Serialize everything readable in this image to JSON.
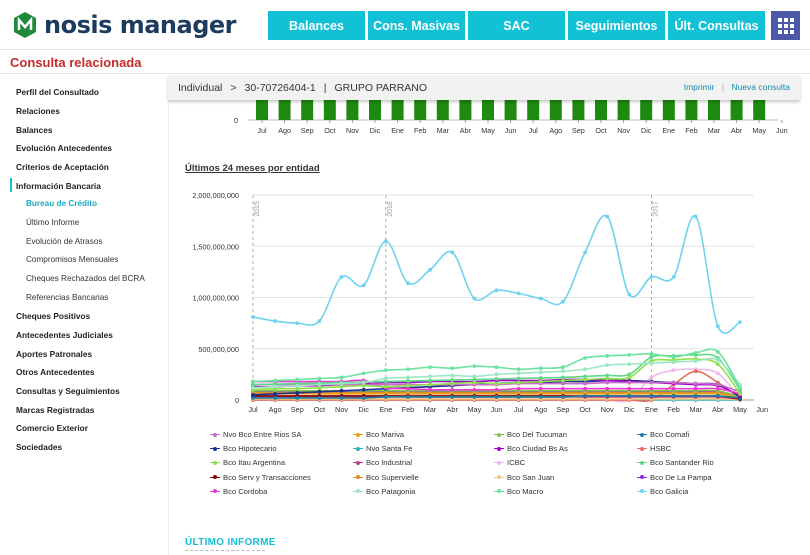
{
  "header": {
    "logo_text": "nosis manager",
    "brand_color": "#1d3a5f",
    "accent_color": "#13c1d6",
    "nav": [
      {
        "label": "Balances"
      },
      {
        "label": "Cons. Masivas"
      },
      {
        "label": "SAC"
      },
      {
        "label": "Seguimientos"
      },
      {
        "label": "Últ. Consultas"
      }
    ],
    "apps_icon": "grid-icon"
  },
  "page_title": "Consulta relacionada",
  "sidebar": {
    "items": [
      {
        "label": "Perfil del Consultado"
      },
      {
        "label": "Relaciones"
      },
      {
        "label": "Balances"
      },
      {
        "label": "Evolución Antecedentes"
      },
      {
        "label": "Criterios de Aceptación"
      },
      {
        "label": "Información Bancaria"
      },
      {
        "label": "Bureau de Crédito"
      },
      {
        "label": "Último Informe"
      },
      {
        "label": "Evolución de Atrasos"
      },
      {
        "label": "Compromisos Mensuales"
      },
      {
        "label": "Cheques Rechazados del BCRA"
      },
      {
        "label": "Referencias Bancarias"
      },
      {
        "label": "Cheques Positivos"
      },
      {
        "label": "Antecedentes Judiciales"
      },
      {
        "label": "Aportes Patronales"
      },
      {
        "label": "Otros Antecedentes"
      },
      {
        "label": "Consultas y Seguimientos"
      },
      {
        "label": "Marcas Registradas"
      },
      {
        "label": "Comercio Exterior"
      },
      {
        "label": "Sociedades"
      }
    ]
  },
  "breadcrumb": {
    "type": "Individual",
    "sep": ">",
    "cuit": "30-70726404-1",
    "bar": "|",
    "name": "GRUPO PARRANO",
    "print_label": "Imprimir",
    "link_sep": "|",
    "new_query_label": "Nueva consulta"
  },
  "top_chart": {
    "zero_label": "0",
    "months": [
      "Jul",
      "Ago",
      "Sep",
      "Oct",
      "Nov",
      "Dic",
      "Ene",
      "Feb",
      "Mar",
      "Abr",
      "May",
      "Jun",
      "Jul",
      "Ago",
      "Sep",
      "Oct",
      "Nov",
      "Dic",
      "Ene",
      "Feb",
      "Mar",
      "Abr",
      "May",
      "Jun"
    ],
    "bar_color": "#1e8a0f"
  },
  "chart_title": "Últimos 24 meses por entidad",
  "chart_data": {
    "type": "line",
    "title": "Últimos 24 meses por entidad",
    "x": [
      "Jul",
      "Ago",
      "Sep",
      "Oct",
      "Nov",
      "Dic",
      "Ene",
      "Feb",
      "Mar",
      "Abr",
      "May",
      "Jun",
      "Jul",
      "Ago",
      "Sep",
      "Oct",
      "Nov",
      "Dic",
      "Ene",
      "Feb",
      "Mar",
      "Abr",
      "May"
    ],
    "year_markers": [
      {
        "label": "2015",
        "index": 0
      },
      {
        "label": "2016",
        "index": 6
      },
      {
        "label": "2017",
        "index": 18
      }
    ],
    "ylim": [
      0,
      2000000000
    ],
    "yticks": [
      "0",
      "500,000,000",
      "1,000,000,000",
      "1,500,000,000",
      "2,000,000,000"
    ],
    "x_extra_tick": "Jun",
    "grid": true,
    "series": [
      {
        "name": "Bco Galicia",
        "color": "#6fd3ee",
        "values": [
          810000000,
          770000000,
          750000000,
          770000000,
          1200000000,
          1120000000,
          1550000000,
          1140000000,
          1270000000,
          1440000000,
          990000000,
          1070000000,
          1040000000,
          990000000,
          960000000,
          1440000000,
          1790000000,
          1030000000,
          1200000000,
          1200000000,
          1790000000,
          720000000,
          760000000
        ]
      },
      {
        "name": "Bco Macro",
        "color": "#6ce39e",
        "values": [
          180000000,
          190000000,
          200000000,
          210000000,
          220000000,
          260000000,
          290000000,
          300000000,
          320000000,
          310000000,
          330000000,
          320000000,
          300000000,
          310000000,
          320000000,
          410000000,
          430000000,
          440000000,
          450000000,
          420000000,
          460000000,
          470000000,
          120000000
        ]
      },
      {
        "name": "Bco Patagonia",
        "color": "#9be7c4",
        "values": [
          120000000,
          130000000,
          140000000,
          150000000,
          160000000,
          170000000,
          210000000,
          220000000,
          230000000,
          240000000,
          230000000,
          250000000,
          260000000,
          270000000,
          280000000,
          300000000,
          340000000,
          350000000,
          360000000,
          370000000,
          380000000,
          390000000,
          150000000
        ]
      },
      {
        "name": "Bco Itau Argentina",
        "color": "#8fe04a",
        "values": [
          100000000,
          110000000,
          110000000,
          120000000,
          130000000,
          140000000,
          130000000,
          140000000,
          150000000,
          160000000,
          170000000,
          160000000,
          170000000,
          180000000,
          190000000,
          200000000,
          210000000,
          220000000,
          380000000,
          390000000,
          400000000,
          350000000,
          60000000
        ]
      },
      {
        "name": "Bco Santander Rio",
        "color": "#5fd68a",
        "values": [
          150000000,
          155000000,
          160000000,
          165000000,
          170000000,
          175000000,
          180000000,
          185000000,
          190000000,
          195000000,
          200000000,
          205000000,
          210000000,
          215000000,
          220000000,
          230000000,
          240000000,
          250000000,
          420000000,
          430000000,
          440000000,
          410000000,
          100000000
        ]
      },
      {
        "name": "Nvo Bco Entre Rios SA",
        "color": "#c86ec8",
        "values": [
          150000000,
          150000000,
          150000000,
          150000000,
          150000000,
          150000000,
          150000000,
          150000000,
          150000000,
          150000000,
          150000000,
          150000000,
          160000000,
          160000000,
          160000000,
          160000000,
          170000000,
          170000000,
          170000000,
          170000000,
          160000000,
          150000000,
          80000000
        ]
      },
      {
        "name": "Bco Cordoba",
        "color": "#e83ad0",
        "values": [
          180000000,
          180000000,
          180000000,
          180000000,
          180000000,
          190000000,
          120000000,
          110000000,
          100000000,
          100000000,
          100000000,
          100000000,
          110000000,
          110000000,
          110000000,
          110000000,
          110000000,
          110000000,
          110000000,
          110000000,
          110000000,
          110000000,
          60000000
        ]
      },
      {
        "name": "Bco Ciudad Bs As",
        "color": "#a000c8",
        "values": [
          130000000,
          130000000,
          140000000,
          140000000,
          150000000,
          160000000,
          170000000,
          170000000,
          180000000,
          180000000,
          180000000,
          190000000,
          190000000,
          190000000,
          200000000,
          200000000,
          190000000,
          180000000,
          170000000,
          160000000,
          150000000,
          140000000,
          40000000
        ]
      },
      {
        "name": "Bco Hipotecario",
        "color": "#1f2f8f",
        "values": [
          50000000,
          60000000,
          70000000,
          80000000,
          90000000,
          100000000,
          110000000,
          120000000,
          130000000,
          140000000,
          150000000,
          160000000,
          170000000,
          170000000,
          180000000,
          180000000,
          190000000,
          190000000,
          180000000,
          170000000,
          160000000,
          150000000,
          30000000
        ]
      },
      {
        "name": "Bco Comafi",
        "color": "#1e7fa8",
        "values": [
          20000000,
          20000000,
          20000000,
          20000000,
          20000000,
          20000000,
          30000000,
          30000000,
          30000000,
          30000000,
          30000000,
          30000000,
          30000000,
          30000000,
          30000000,
          40000000,
          40000000,
          40000000,
          40000000,
          40000000,
          40000000,
          40000000,
          20000000
        ]
      },
      {
        "name": "Bco Serv y Transacciones",
        "color": "#8b0000",
        "values": [
          40000000,
          40000000,
          40000000,
          40000000,
          40000000,
          40000000,
          40000000,
          40000000,
          40000000,
          40000000,
          40000000,
          40000000,
          40000000,
          40000000,
          40000000,
          40000000,
          40000000,
          40000000,
          40000000,
          40000000,
          40000000,
          40000000,
          10000000
        ]
      },
      {
        "name": "Bco Industrial",
        "color": "#c23a8a",
        "values": [
          30000000,
          30000000,
          30000000,
          30000000,
          30000000,
          30000000,
          30000000,
          30000000,
          30000000,
          30000000,
          30000000,
          30000000,
          30000000,
          30000000,
          30000000,
          30000000,
          30000000,
          30000000,
          30000000,
          30000000,
          30000000,
          30000000,
          10000000
        ]
      },
      {
        "name": "Bco Mariva",
        "color": "#e8a21a",
        "values": [
          60000000,
          60000000,
          60000000,
          60000000,
          60000000,
          60000000,
          60000000,
          60000000,
          60000000,
          60000000,
          60000000,
          60000000,
          60000000,
          60000000,
          60000000,
          60000000,
          60000000,
          60000000,
          60000000,
          60000000,
          60000000,
          60000000,
          20000000
        ]
      },
      {
        "name": "Bco Del Tucuman",
        "color": "#86c34a",
        "values": [
          90000000,
          90000000,
          90000000,
          90000000,
          90000000,
          90000000,
          90000000,
          90000000,
          90000000,
          90000000,
          90000000,
          90000000,
          90000000,
          90000000,
          90000000,
          90000000,
          90000000,
          90000000,
          90000000,
          90000000,
          90000000,
          90000000,
          30000000
        ]
      },
      {
        "name": "Bco Supervielle",
        "color": "#e08a2a",
        "values": [
          70000000,
          70000000,
          70000000,
          70000000,
          70000000,
          70000000,
          70000000,
          70000000,
          70000000,
          70000000,
          70000000,
          70000000,
          70000000,
          70000000,
          70000000,
          70000000,
          70000000,
          70000000,
          70000000,
          70000000,
          70000000,
          70000000,
          20000000
        ]
      },
      {
        "name": "Bco San Juan",
        "color": "#f2c879",
        "values": [
          10000000,
          10000000,
          10000000,
          10000000,
          10000000,
          10000000,
          10000000,
          10000000,
          10000000,
          10000000,
          10000000,
          10000000,
          10000000,
          10000000,
          10000000,
          10000000,
          10000000,
          10000000,
          10000000,
          10000000,
          10000000,
          10000000,
          5000000
        ]
      },
      {
        "name": "Bco De La Pampa",
        "color": "#8b2bd6",
        "values": [
          80000000,
          80000000,
          80000000,
          80000000,
          80000000,
          80000000,
          80000000,
          80000000,
          80000000,
          80000000,
          80000000,
          80000000,
          80000000,
          80000000,
          80000000,
          80000000,
          80000000,
          80000000,
          80000000,
          80000000,
          80000000,
          80000000,
          20000000
        ]
      },
      {
        "name": "HSBC",
        "color": "#e86a5a",
        "values": [
          0,
          0,
          0,
          0,
          0,
          0,
          0,
          0,
          0,
          0,
          0,
          0,
          0,
          0,
          0,
          0,
          0,
          0,
          0,
          150000000,
          280000000,
          170000000,
          20000000
        ]
      },
      {
        "name": "ICBC",
        "color": "#f4b8e6",
        "values": [
          0,
          0,
          0,
          0,
          0,
          0,
          0,
          0,
          0,
          0,
          0,
          0,
          0,
          0,
          0,
          0,
          0,
          0,
          220000000,
          290000000,
          300000000,
          260000000,
          20000000
        ]
      },
      {
        "name": "Nvo Santa Fe",
        "color": "#2ab0bf",
        "values": [
          0,
          0,
          0,
          0,
          0,
          0,
          0,
          0,
          0,
          0,
          0,
          0,
          0,
          0,
          0,
          0,
          0,
          0,
          0,
          0,
          0,
          0,
          0
        ]
      }
    ]
  },
  "legend": [
    {
      "name": "Nvo Bco Entre Rios SA",
      "color": "#c86ec8"
    },
    {
      "name": "Bco Mariva",
      "color": "#e8a21a"
    },
    {
      "name": "Bco Del Tucuman",
      "color": "#86c34a"
    },
    {
      "name": "Bco Comafi",
      "color": "#1e7fa8"
    },
    {
      "name": "Bco Hipotecario",
      "color": "#1f2f8f"
    },
    {
      "name": "Nvo Santa Fe",
      "color": "#2ab0bf"
    },
    {
      "name": "Bco Ciudad Bs As",
      "color": "#a000c8"
    },
    {
      "name": "HSBC",
      "color": "#e86a5a"
    },
    {
      "name": "Bco Itau Argentina",
      "color": "#8fe04a"
    },
    {
      "name": "Bco Industrial",
      "color": "#c23a8a"
    },
    {
      "name": "ICBC",
      "color": "#f4b8e6"
    },
    {
      "name": "Bco Santander Rio",
      "color": "#5fd68a"
    },
    {
      "name": "Bco Serv y Transacciones",
      "color": "#8b0000"
    },
    {
      "name": "Bco Supervielle",
      "color": "#e08a2a"
    },
    {
      "name": "Bco San Juan",
      "color": "#f2c879"
    },
    {
      "name": "Bco De La Pampa",
      "color": "#8b2bd6"
    },
    {
      "name": "Bco Cordoba",
      "color": "#e83ad0"
    },
    {
      "name": "Bco Patagonia",
      "color": "#9be7c4"
    },
    {
      "name": "Bco Macro",
      "color": "#6ce39e"
    },
    {
      "name": "Bco Galicia",
      "color": "#6fd3ee"
    }
  ],
  "section_below": "ÚLTIMO INFORME"
}
